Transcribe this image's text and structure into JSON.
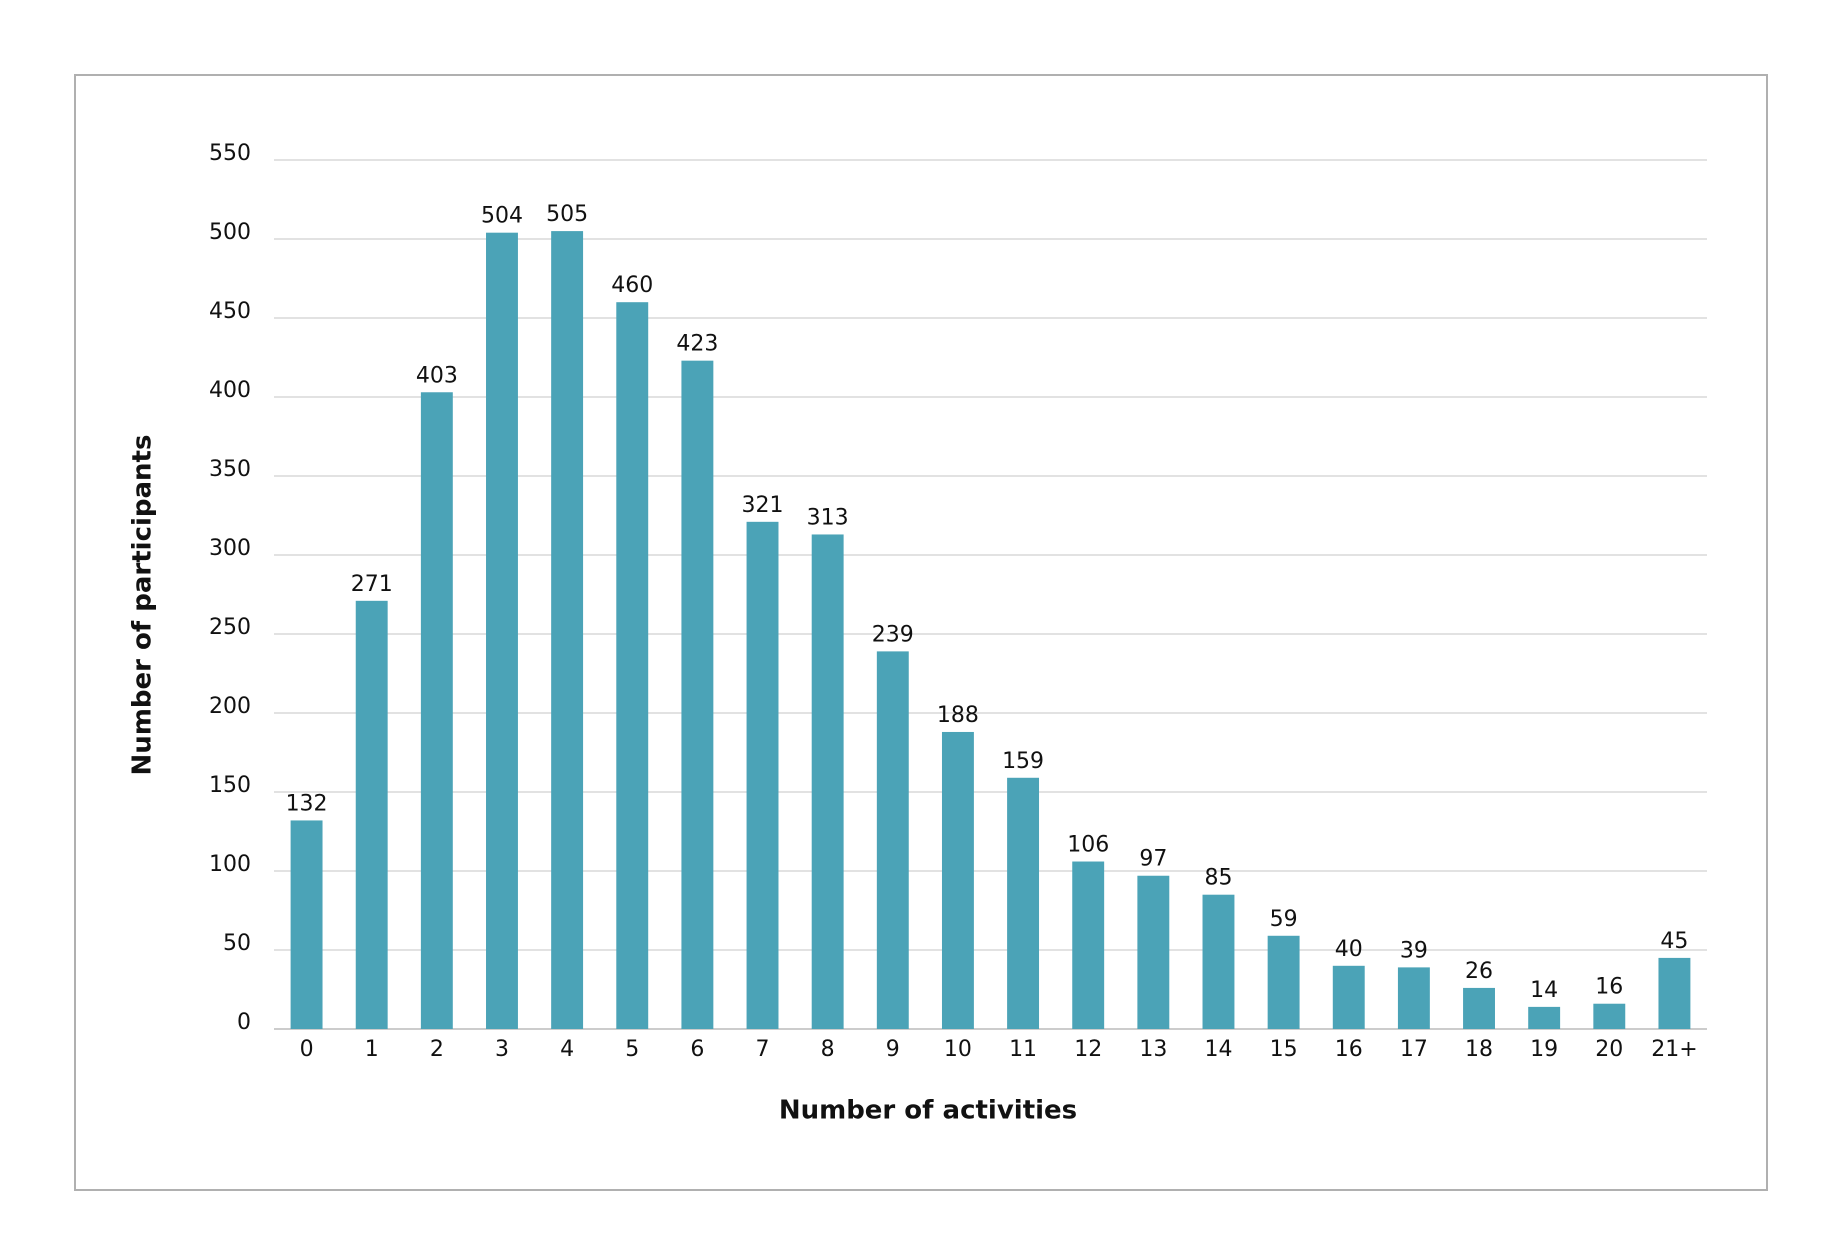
{
  "chart_data": {
    "type": "bar",
    "x_label": "Number of activities",
    "y_label": "Number of participants",
    "categories": [
      "0",
      "1",
      "2",
      "3",
      "4",
      "5",
      "6",
      "7",
      "8",
      "9",
      "10",
      "11",
      "12",
      "13",
      "14",
      "15",
      "16",
      "17",
      "18",
      "19",
      "20",
      "21+"
    ],
    "values": [
      132,
      271,
      403,
      504,
      505,
      460,
      423,
      321,
      313,
      239,
      188,
      159,
      106,
      97,
      85,
      59,
      40,
      39,
      26,
      14,
      16,
      45
    ],
    "color": "#4ba3b7",
    "ylim": [
      0,
      550
    ],
    "yticks": [
      0,
      50,
      100,
      150,
      200,
      250,
      300,
      350,
      400,
      450,
      500,
      550
    ],
    "grid": true
  }
}
